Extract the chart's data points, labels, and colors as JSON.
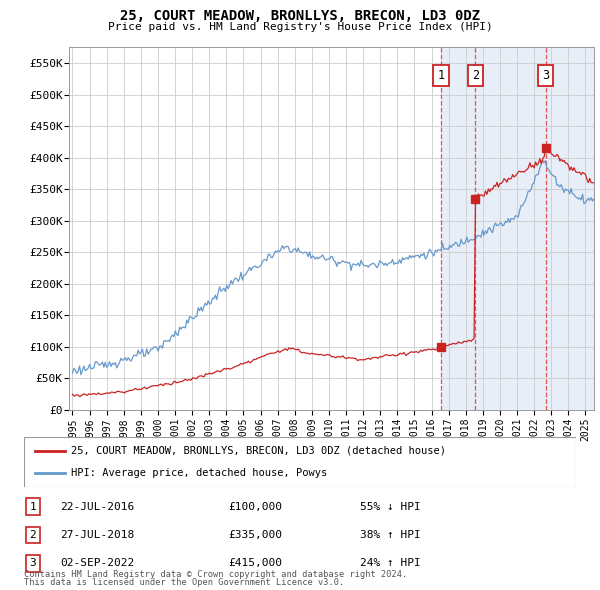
{
  "title": "25, COURT MEADOW, BRONLLYS, BRECON, LD3 0DZ",
  "subtitle": "Price paid vs. HM Land Registry's House Price Index (HPI)",
  "legend_line1": "25, COURT MEADOW, BRONLLYS, BRECON, LD3 0DZ (detached house)",
  "legend_line2": "HPI: Average price, detached house, Powys",
  "footer1": "Contains HM Land Registry data © Crown copyright and database right 2024.",
  "footer2": "This data is licensed under the Open Government Licence v3.0.",
  "transactions": [
    {
      "num": 1,
      "date": "22-JUL-2016",
      "price": "£100,000",
      "change": "55% ↓ HPI",
      "x_year": 2016.55,
      "price_val": 100000
    },
    {
      "num": 2,
      "date": "27-JUL-2018",
      "price": "£335,000",
      "change": "38% ↑ HPI",
      "x_year": 2018.57,
      "price_val": 335000
    },
    {
      "num": 3,
      "date": "02-SEP-2022",
      "price": "£415,000",
      "change": "24% ↑ HPI",
      "x_year": 2022.67,
      "price_val": 415000
    }
  ],
  "red_line_color": "#cc2222",
  "blue_line_color": "#6699cc",
  "dashed_line_color": "#dd4444",
  "background_color": "#ffffff",
  "grid_color": "#cccccc",
  "highlight_color": "#e8eef8",
  "ylim": [
    0,
    575000
  ],
  "xlim_start": 1994.8,
  "xlim_end": 2025.5,
  "yticks": [
    0,
    50000,
    100000,
    150000,
    200000,
    250000,
    300000,
    350000,
    400000,
    450000,
    500000,
    550000
  ],
  "ytick_labels": [
    "£0",
    "£50K",
    "£100K",
    "£150K",
    "£200K",
    "£250K",
    "£300K",
    "£350K",
    "£400K",
    "£450K",
    "£500K",
    "£550K"
  ],
  "xticks": [
    1995,
    1996,
    1997,
    1998,
    1999,
    2000,
    2001,
    2002,
    2003,
    2004,
    2005,
    2006,
    2007,
    2008,
    2009,
    2010,
    2011,
    2012,
    2013,
    2014,
    2015,
    2016,
    2017,
    2018,
    2019,
    2020,
    2021,
    2022,
    2023,
    2024,
    2025
  ]
}
